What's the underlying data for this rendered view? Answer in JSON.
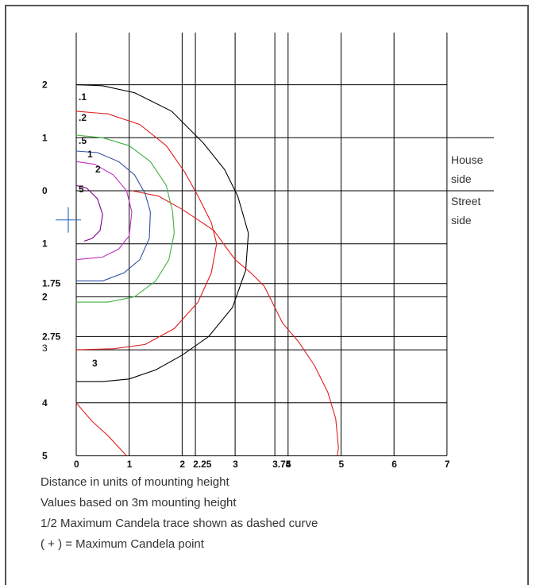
{
  "chart_data": {
    "type": "isocandela_contour",
    "x_ticks": [
      "0",
      "1",
      "2",
      "2.25",
      "3",
      "3.75",
      "4",
      "5",
      "6",
      "7"
    ],
    "y_ticks_up": [
      "0",
      "1",
      "2"
    ],
    "y_ticks_down": [
      "1",
      "1.75",
      "2",
      "2.75",
      "3",
      "4",
      "5"
    ],
    "side_labels": {
      "house_line1": "House",
      "house_line2": "side",
      "street_line1": "Street",
      "street_line2": "side"
    },
    "contour_labels": [
      ".1",
      ".2",
      ".5",
      "1",
      "2",
      "5",
      "3"
    ],
    "max_candela_point": {
      "x": -0.15,
      "y": -0.55
    },
    "colors": {
      "grid": "#000000",
      "c01": "#000000",
      "c02": "#e02020",
      "c05": "#40b040",
      "c1": "#3050a0",
      "c2": "#c030c0",
      "c5": "#800080",
      "marker": "#3070c0"
    },
    "contours": [
      {
        "level": ".1",
        "color": "#000000",
        "points": [
          [
            0,
            2.0
          ],
          [
            0.5,
            1.98
          ],
          [
            1.1,
            1.85
          ],
          [
            1.8,
            1.5
          ],
          [
            2.4,
            0.9
          ],
          [
            2.8,
            0.4
          ],
          [
            3.05,
            -0.1
          ],
          [
            3.25,
            -0.8
          ],
          [
            3.2,
            -1.5
          ],
          [
            2.95,
            -2.2
          ],
          [
            2.5,
            -2.75
          ],
          [
            2.0,
            -3.1
          ],
          [
            1.5,
            -3.38
          ],
          [
            1.0,
            -3.55
          ],
          [
            0.5,
            -3.6
          ],
          [
            0,
            -3.6
          ]
        ]
      },
      {
        "level": ".2",
        "color": "#e02020",
        "points": [
          [
            0,
            1.5
          ],
          [
            0.6,
            1.45
          ],
          [
            1.2,
            1.25
          ],
          [
            1.7,
            0.85
          ],
          [
            2.05,
            0.35
          ],
          [
            2.3,
            -0.1
          ],
          [
            2.55,
            -0.6
          ],
          [
            2.65,
            -1.0
          ],
          [
            2.55,
            -1.55
          ],
          [
            2.3,
            -2.1
          ],
          [
            1.85,
            -2.6
          ],
          [
            1.3,
            -2.9
          ],
          [
            0.7,
            -2.98
          ],
          [
            0,
            -3.0
          ]
        ]
      },
      {
        "level": ".2",
        "color": "#e02020",
        "points": [
          [
            1.05,
            0.0
          ],
          [
            1.55,
            -0.1
          ],
          [
            2.0,
            -0.35
          ],
          [
            2.6,
            -0.75
          ],
          [
            3.0,
            -1.3
          ],
          [
            3.3,
            -1.55
          ],
          [
            3.55,
            -1.8
          ],
          [
            3.75,
            -2.2
          ],
          [
            3.9,
            -2.5
          ],
          [
            4.2,
            -2.85
          ],
          [
            4.5,
            -3.3
          ],
          [
            4.75,
            -3.8
          ],
          [
            4.9,
            -4.3
          ],
          [
            4.95,
            -4.85
          ],
          [
            4.93,
            -5.0
          ]
        ]
      },
      {
        "level": ".2",
        "color": "#e02020",
        "points": [
          [
            0,
            -4.0
          ],
          [
            0.3,
            -4.35
          ],
          [
            0.6,
            -4.62
          ],
          [
            0.95,
            -5.0
          ]
        ]
      },
      {
        "level": ".5",
        "color": "#40b040",
        "points": [
          [
            0,
            1.05
          ],
          [
            0.5,
            1.0
          ],
          [
            1.0,
            0.85
          ],
          [
            1.4,
            0.55
          ],
          [
            1.7,
            0.1
          ],
          [
            1.82,
            -0.4
          ],
          [
            1.85,
            -0.8
          ],
          [
            1.75,
            -1.3
          ],
          [
            1.5,
            -1.7
          ],
          [
            1.1,
            -2.0
          ],
          [
            0.6,
            -2.1
          ],
          [
            0,
            -2.1
          ]
        ]
      },
      {
        "level": "1",
        "color": "#3050a0",
        "points": [
          [
            0,
            0.75
          ],
          [
            0.4,
            0.72
          ],
          [
            0.8,
            0.55
          ],
          [
            1.1,
            0.3
          ],
          [
            1.3,
            -0.05
          ],
          [
            1.4,
            -0.4
          ],
          [
            1.38,
            -0.9
          ],
          [
            1.2,
            -1.3
          ],
          [
            0.9,
            -1.55
          ],
          [
            0.5,
            -1.7
          ],
          [
            0,
            -1.7
          ]
        ]
      },
      {
        "level": "2",
        "color": "#c030c0",
        "points": [
          [
            0,
            0.55
          ],
          [
            0.35,
            0.5
          ],
          [
            0.7,
            0.3
          ],
          [
            0.95,
            0.0
          ],
          [
            1.05,
            -0.4
          ],
          [
            1.0,
            -0.85
          ],
          [
            0.8,
            -1.1
          ],
          [
            0.5,
            -1.25
          ],
          [
            0,
            -1.3
          ]
        ]
      },
      {
        "level": "5",
        "color": "#800080",
        "points": [
          [
            0,
            0.1
          ],
          [
            0.2,
            0.05
          ],
          [
            0.4,
            -0.15
          ],
          [
            0.5,
            -0.45
          ],
          [
            0.45,
            -0.75
          ],
          [
            0.3,
            -0.9
          ],
          [
            0.15,
            -0.95
          ]
        ]
      }
    ]
  },
  "notes": {
    "line1": "Distance in units of mounting height",
    "line2": "Values based on 3m mounting height",
    "line3": "1/2 Maximum Candela trace shown as dashed curve",
    "line4": "( + ) = Maximum Candela point"
  }
}
